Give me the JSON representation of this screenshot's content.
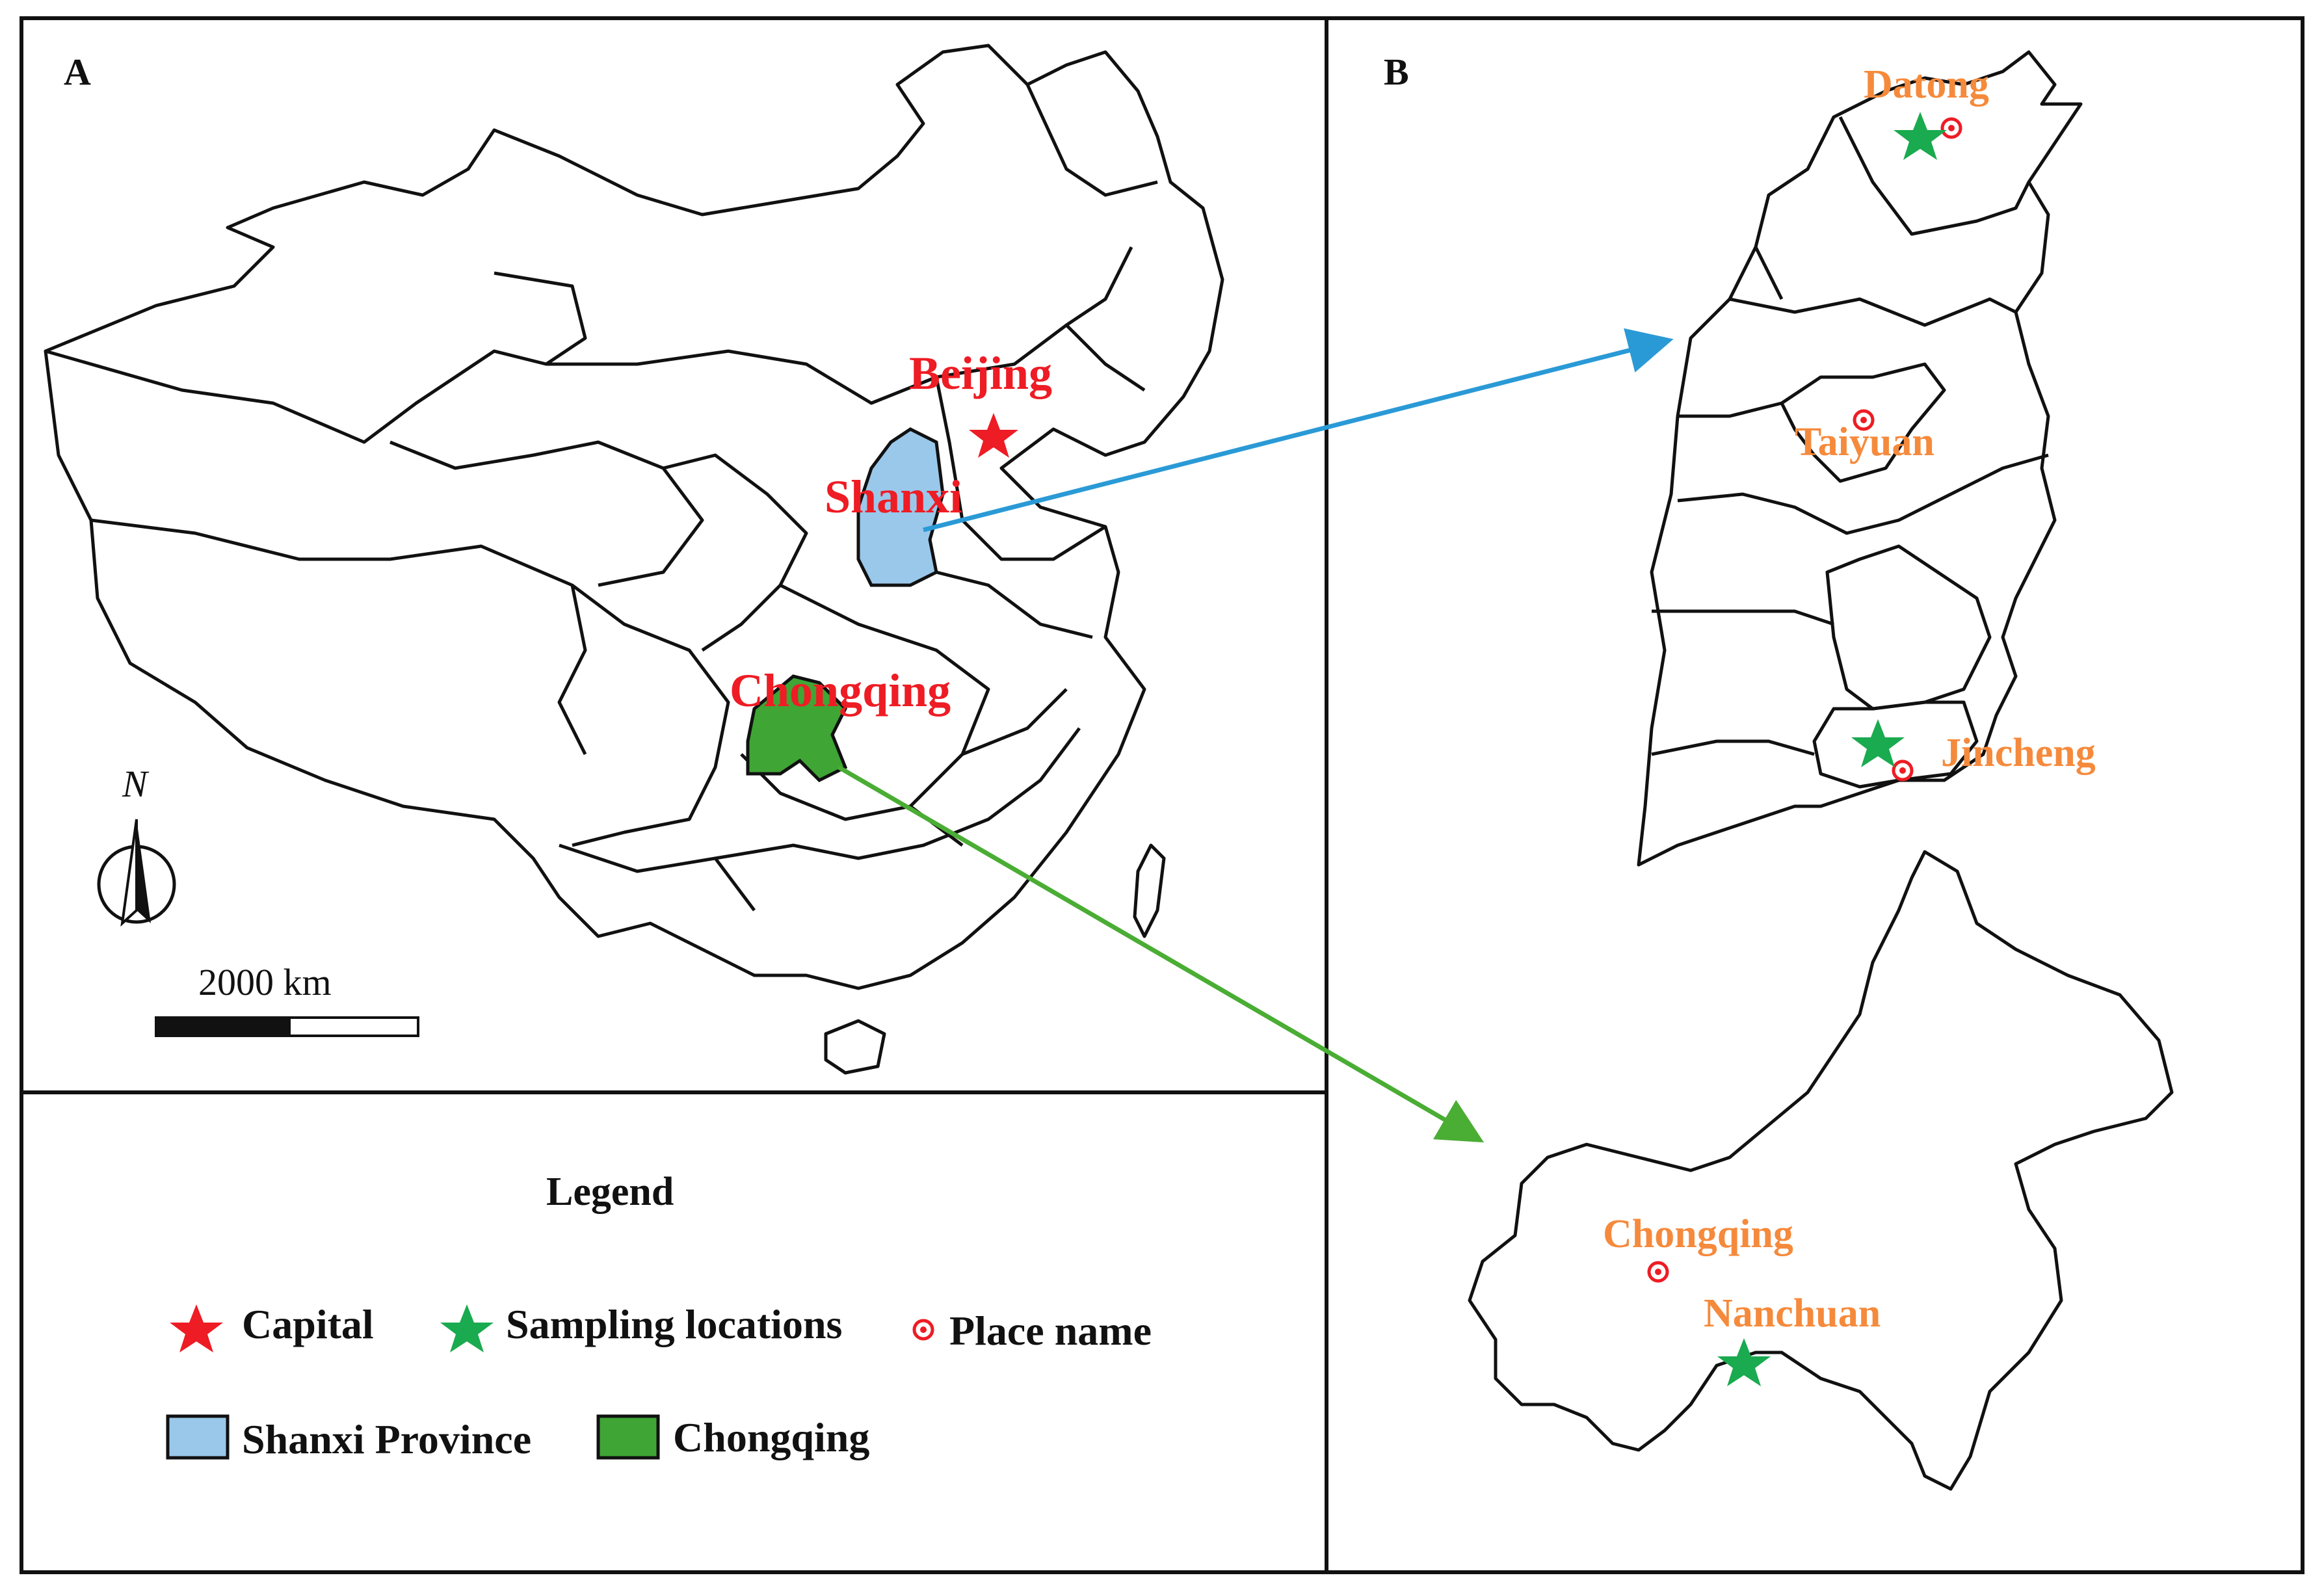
{
  "panels": {
    "a": {
      "label": "A"
    },
    "b": {
      "label": "B"
    }
  },
  "map_a": {
    "labels": {
      "beijing": "Beijing",
      "shanxi": "Shanxi",
      "chongqing": "Chongqing"
    },
    "north": "N",
    "scale": "2000 km"
  },
  "map_b": {
    "places": {
      "datong": "Datong",
      "taiyuan": "Taiyuan",
      "jincheng": "Jincheng",
      "chongqing": "Chongqing",
      "nanchuan": "Nanchuan"
    }
  },
  "legend": {
    "title": "Legend",
    "items": {
      "capital": "Capital",
      "sampling": "Sampling locations",
      "place": "Place name",
      "shanxi": "Shanxi Province",
      "chongqing": "Chongqing"
    }
  },
  "colors": {
    "capital_star": "#ee1c24",
    "sampling_star": "#1aaa4f",
    "place_marker": "#ee1c24",
    "shanxi_fill": "#9ac8ea",
    "chongqing_fill": "#3fa535",
    "arrow_shanxi": "#2a9ad6",
    "arrow_chongqing": "#4aad34",
    "map_label_red": "#ee1c24",
    "map_label_orange": "#f58a3c"
  }
}
